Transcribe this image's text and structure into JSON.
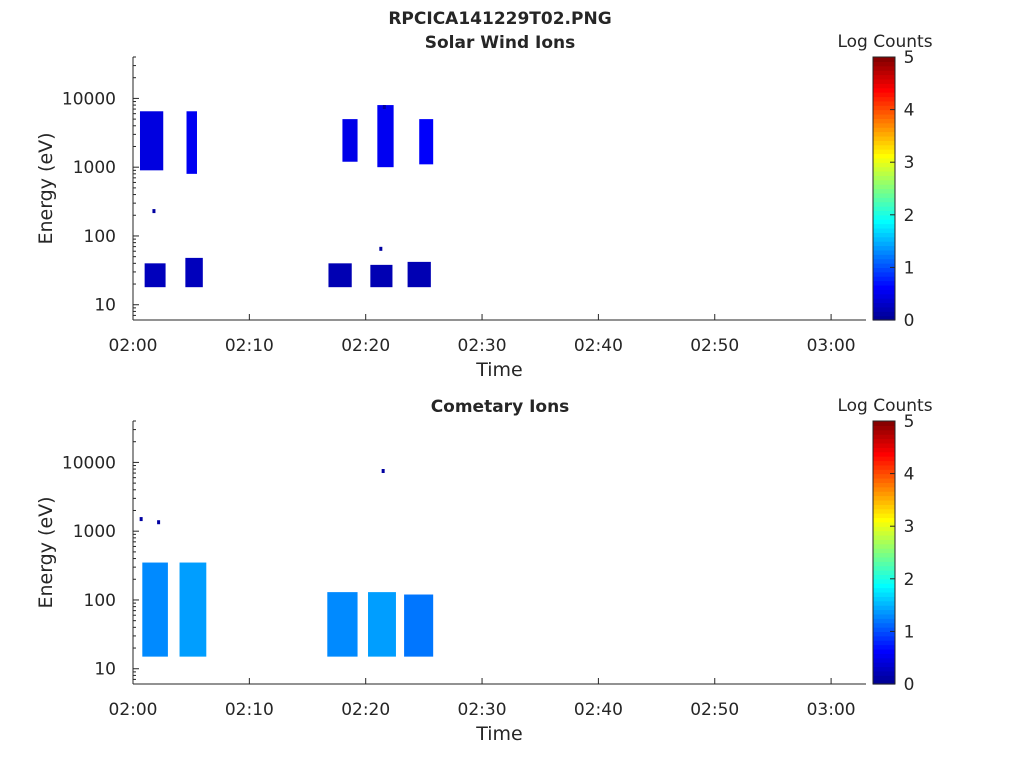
{
  "figure_title": "RPCICA141229T02.PNG",
  "colors": {
    "background": "#ffffff",
    "axis": "#262626",
    "colormap": [
      "#00008f",
      "#0000ff",
      "#0080ff",
      "#00ffff",
      "#80ff80",
      "#ffff00",
      "#ff8000",
      "#ff0000",
      "#800000"
    ]
  },
  "chart_data": [
    {
      "type": "heatmap",
      "title": "Solar Wind Ions",
      "xlabel": "Time",
      "ylabel": "Energy (eV)",
      "x_ticks": [
        "02:00",
        "02:10",
        "02:20",
        "02:30",
        "02:40",
        "02:50",
        "03:00"
      ],
      "xlim": [
        "02:00",
        "03:03"
      ],
      "y_scale": "log",
      "y_ticks": [
        "10",
        "100",
        "1000",
        "10000"
      ],
      "ylim": [
        6,
        40000
      ],
      "colorbar": {
        "label": "Log Counts",
        "range": [
          0,
          5
        ],
        "ticks": [
          "0",
          "1",
          "2",
          "3",
          "4",
          "5"
        ]
      },
      "blocks": [
        {
          "t0": 0.6,
          "t1": 2.6,
          "e_lo": 900,
          "e_hi": 6500,
          "lvl": 0.45
        },
        {
          "t0": 4.6,
          "t1": 5.5,
          "e_lo": 800,
          "e_hi": 6500,
          "lvl": 0.55
        },
        {
          "t0": 18.0,
          "t1": 19.3,
          "e_lo": 1200,
          "e_hi": 5000,
          "lvl": 0.5
        },
        {
          "t0": 21.0,
          "t1": 22.4,
          "e_lo": 1000,
          "e_hi": 8000,
          "lvl": 0.55
        },
        {
          "t0": 24.6,
          "t1": 25.8,
          "e_lo": 1100,
          "e_hi": 5000,
          "lvl": 0.6
        },
        {
          "t0": 1.0,
          "t1": 2.8,
          "e_lo": 18,
          "e_hi": 40,
          "lvl": 0.25
        },
        {
          "t0": 4.5,
          "t1": 6.0,
          "e_lo": 18,
          "e_hi": 48,
          "lvl": 0.25
        },
        {
          "t0": 16.8,
          "t1": 18.8,
          "e_lo": 18,
          "e_hi": 40,
          "lvl": 0.2
        },
        {
          "t0": 20.4,
          "t1": 22.3,
          "e_lo": 18,
          "e_hi": 38,
          "lvl": 0.2
        },
        {
          "t0": 23.6,
          "t1": 25.6,
          "e_lo": 18,
          "e_hi": 42,
          "lvl": 0.2
        }
      ],
      "points": [
        {
          "t": 1.8,
          "e": 230,
          "lvl": 0.1
        },
        {
          "t": 21.3,
          "e": 65,
          "lvl": 0.1
        },
        {
          "t": 21.6,
          "e": 7500,
          "lvl": 0.1
        }
      ]
    },
    {
      "type": "heatmap",
      "title": "Cometary Ions",
      "xlabel": "Time",
      "ylabel": "Energy (eV)",
      "x_ticks": [
        "02:00",
        "02:10",
        "02:20",
        "02:30",
        "02:40",
        "02:50",
        "03:00"
      ],
      "xlim": [
        "02:00",
        "03:03"
      ],
      "y_scale": "log",
      "y_ticks": [
        "10",
        "100",
        "1000",
        "10000"
      ],
      "ylim": [
        6,
        40000
      ],
      "colorbar": {
        "label": "Log Counts",
        "range": [
          0,
          5
        ],
        "ticks": [
          "0",
          "1",
          "2",
          "3",
          "4",
          "5"
        ]
      },
      "blocks": [
        {
          "t0": 0.8,
          "t1": 3.0,
          "e_lo": 15,
          "e_hi": 350,
          "lvl": 1.3
        },
        {
          "t0": 4.0,
          "t1": 6.3,
          "e_lo": 15,
          "e_hi": 350,
          "lvl": 1.4
        },
        {
          "t0": 16.7,
          "t1": 19.3,
          "e_lo": 15,
          "e_hi": 130,
          "lvl": 1.3
        },
        {
          "t0": 20.2,
          "t1": 22.6,
          "e_lo": 15,
          "e_hi": 130,
          "lvl": 1.4
        },
        {
          "t0": 23.3,
          "t1": 25.8,
          "e_lo": 15,
          "e_hi": 120,
          "lvl": 1.2
        }
      ],
      "points": [
        {
          "t": 0.7,
          "e": 1500,
          "lvl": 0.1
        },
        {
          "t": 2.2,
          "e": 1350,
          "lvl": 0.1
        },
        {
          "t": 21.5,
          "e": 7500,
          "lvl": 0.1
        }
      ]
    }
  ]
}
